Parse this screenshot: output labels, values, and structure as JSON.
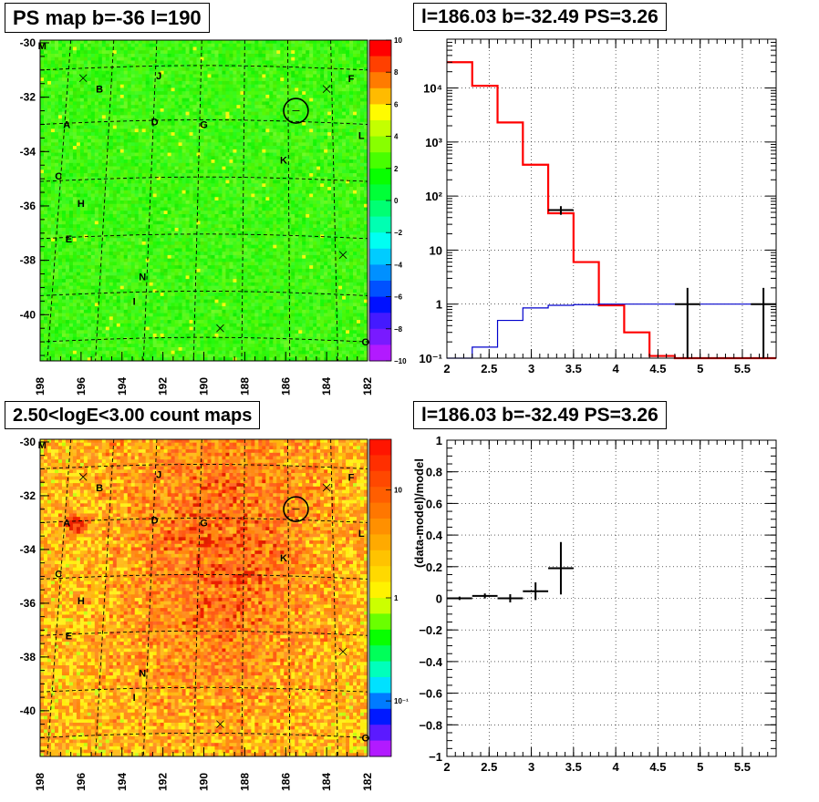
{
  "panels": {
    "tl": {
      "title": "PS map b=-36 l=190"
    },
    "tr": {
      "title": "l=186.03 b=-32.49 PS=3.26"
    },
    "bl": {
      "title": "2.50<logE<3.00 count maps"
    },
    "br": {
      "title": "l=186.03 b=-32.49 PS=3.26"
    }
  },
  "colors": {
    "red_model": "#ff0000",
    "blue_model": "#0000cc",
    "data": "#000000",
    "circle": "#000000"
  },
  "chart_data": [
    {
      "type": "heatmap",
      "panel": "tl",
      "title": "PS map b=-36 l=190",
      "x_ticks": [
        "198",
        "196",
        "194",
        "192",
        "190",
        "188",
        "186",
        "184",
        "182"
      ],
      "y_ticks": [
        "-30",
        "-32",
        "-34",
        "-36",
        "-38",
        "-40"
      ],
      "xlim": [
        198,
        182
      ],
      "ylim": [
        -41.7,
        -29.9
      ],
      "colorbar": {
        "scale": "linear",
        "range": [
          -10,
          10
        ],
        "ticks": [
          "10",
          "8",
          "6",
          "4",
          "2",
          "0",
          "−2",
          "−4",
          "−6",
          "−8",
          "−10"
        ]
      },
      "source_labels": [
        {
          "name": "M",
          "l": 197.9,
          "b": -30.1
        },
        {
          "name": "J",
          "l": 192.2,
          "b": -31.2
        },
        {
          "name": "F",
          "l": 182.8,
          "b": -31.3
        },
        {
          "name": "B",
          "l": 195.1,
          "b": -31.7
        },
        {
          "name": "A",
          "l": 196.7,
          "b": -33.0
        },
        {
          "name": "D",
          "l": 192.4,
          "b": -32.9
        },
        {
          "name": "G",
          "l": 190.0,
          "b": -33.0
        },
        {
          "name": "L",
          "l": 182.3,
          "b": -33.4
        },
        {
          "name": "K",
          "l": 186.1,
          "b": -34.3
        },
        {
          "name": "C",
          "l": 197.1,
          "b": -34.9
        },
        {
          "name": "H",
          "l": 196.0,
          "b": -35.9
        },
        {
          "name": "E",
          "l": 196.6,
          "b": -37.2
        },
        {
          "name": "N",
          "l": 193.0,
          "b": -38.6
        },
        {
          "name": "I",
          "l": 193.4,
          "b": -39.5
        },
        {
          "name": "O",
          "l": 182.1,
          "b": -41.0
        }
      ],
      "x_markers": [
        {
          "l": 195.9,
          "b": -31.3
        },
        {
          "l": 184.0,
          "b": -31.7
        },
        {
          "l": 183.2,
          "b": -37.8
        },
        {
          "l": 189.2,
          "b": -40.5
        }
      ],
      "circle": {
        "l": 185.5,
        "b": -32.5,
        "radius_deg": 0.5
      }
    },
    {
      "type": "line",
      "panel": "tr",
      "title": "l=186.03 b=-32.49 PS=3.26",
      "xlim": [
        2.0,
        5.9
      ],
      "ylim": [
        0.1,
        80000
      ],
      "yscale": "log",
      "x_ticks": [
        "2",
        "2.5",
        "3",
        "3.5",
        "4",
        "4.5",
        "5",
        "5.5"
      ],
      "y_ticks": [
        "10⁻¹",
        "1",
        "10",
        "10²",
        "10³",
        "10⁴"
      ],
      "grid": true,
      "series": [
        {
          "bin_edges": [
            2.0,
            2.3,
            2.6,
            2.9,
            3.2,
            3.5,
            3.8,
            4.1,
            4.4,
            4.7,
            5.0,
            5.3,
            5.6,
            5.9
          ],
          "values": [
            30000,
            11000,
            2300,
            380,
            48,
            6,
            0.95,
            0.3,
            0.11,
            0.1,
            0.1,
            0.1,
            0.1
          ]
        },
        {
          "bin_edges": [
            2.0,
            2.3,
            2.6,
            2.9,
            3.2,
            3.5,
            3.8,
            4.1,
            4.4,
            4.7,
            5.0,
            5.3,
            5.6,
            5.9
          ],
          "values": [
            0.1,
            0.16,
            0.5,
            0.85,
            0.95,
            0.98,
            1.0,
            1.0,
            1.0,
            1.0,
            1.0,
            1.0,
            1.0
          ]
        }
      ],
      "data_points": [
        {
          "x": 3.35,
          "y": 55,
          "xerr": 0.15,
          "ylo": 45,
          "yhi": 65
        },
        {
          "x": 4.85,
          "y": 1,
          "xerr": 0.15,
          "ylo": 0.1,
          "yhi": 2
        },
        {
          "x": 5.75,
          "y": 1,
          "xerr": 0.15,
          "ylo": 0.1,
          "yhi": 2
        }
      ]
    },
    {
      "type": "heatmap",
      "panel": "bl",
      "title": "2.50<logE<3.00 count maps",
      "x_ticks": [
        "198",
        "196",
        "194",
        "192",
        "190",
        "188",
        "186",
        "184",
        "182"
      ],
      "y_ticks": [
        "-30",
        "-32",
        "-34",
        "-36",
        "-38",
        "-40"
      ],
      "xlim": [
        198,
        182
      ],
      "ylim": [
        -41.7,
        -29.9
      ],
      "colorbar": {
        "scale": "log",
        "ticks": [
          "10",
          "1",
          "10⁻¹"
        ]
      },
      "bright_sources": [
        {
          "l": 196.4,
          "b": -33.0
        }
      ],
      "circle": {
        "l": 185.5,
        "b": -32.5,
        "radius_deg": 0.5
      }
    },
    {
      "type": "scatter",
      "panel": "br",
      "title": "l=186.03 b=-32.49 PS=3.26",
      "ylabel": "(data-model)/model",
      "xlim": [
        2.0,
        5.9
      ],
      "ylim": [
        -1,
        1
      ],
      "x_ticks": [
        "2",
        "2.5",
        "3",
        "3.5",
        "4",
        "4.5",
        "5",
        "5.5"
      ],
      "y_ticks": [
        "1",
        "0.8",
        "0.6",
        "0.4",
        "0.2",
        "0",
        "−0.2",
        "−0.4",
        "−0.6",
        "−0.8",
        "−1"
      ],
      "grid": true,
      "points": [
        {
          "x": 2.15,
          "y": 0.0,
          "xerr": 0.15,
          "yerr": 0.005
        },
        {
          "x": 2.45,
          "y": 0.015,
          "xerr": 0.15,
          "yerr": 0.01
        },
        {
          "x": 2.75,
          "y": 0.0,
          "xerr": 0.15,
          "yerr": 0.02
        },
        {
          "x": 3.05,
          "y": 0.045,
          "xerr": 0.15,
          "yerr": 0.05
        },
        {
          "x": 3.35,
          "y": 0.19,
          "xerr": 0.15,
          "yerr": 0.16
        }
      ]
    }
  ]
}
